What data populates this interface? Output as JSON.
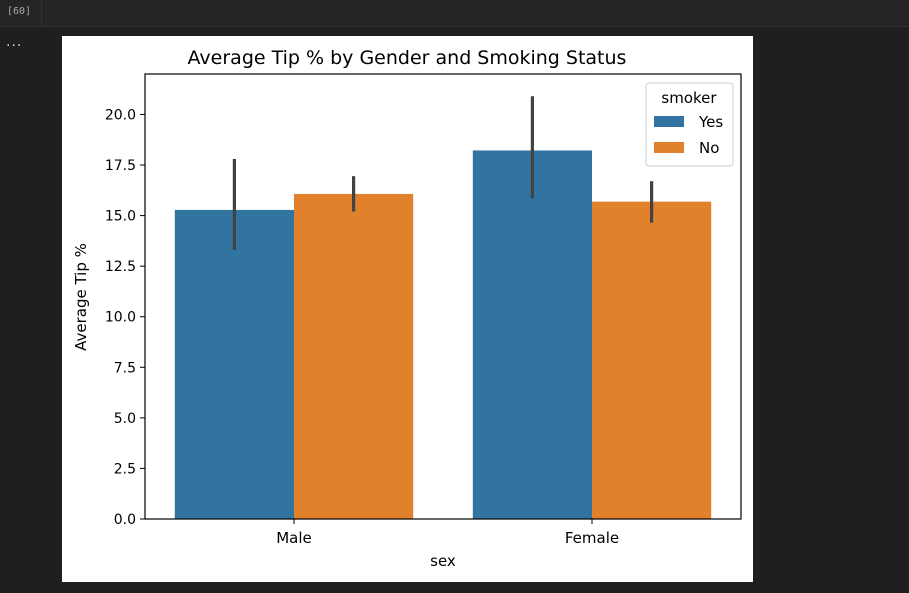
{
  "cell": {
    "execution_count": "[60]",
    "output_menu": "..."
  },
  "chart_data": {
    "type": "bar",
    "title": "Average Tip % by Gender and Smoking Status",
    "xlabel": "sex",
    "ylabel": "Average Tip %",
    "categories": [
      "Male",
      "Female"
    ],
    "ylim": [
      0,
      22
    ],
    "yticks": [
      "0.0",
      "2.5",
      "5.0",
      "7.5",
      "10.0",
      "12.5",
      "15.0",
      "17.5",
      "20.0"
    ],
    "legend": {
      "title": "smoker",
      "placement": "top-right"
    },
    "series": [
      {
        "name": "Yes",
        "color": "#3274a1",
        "values": [
          15.28,
          18.22
        ],
        "ci_low": [
          13.3,
          15.85
        ],
        "ci_high": [
          17.8,
          20.9
        ]
      },
      {
        "name": "No",
        "color": "#e1812c",
        "values": [
          16.07,
          15.69
        ],
        "ci_low": [
          15.2,
          14.65
        ],
        "ci_high": [
          16.95,
          16.7
        ]
      }
    ],
    "grid": false
  }
}
